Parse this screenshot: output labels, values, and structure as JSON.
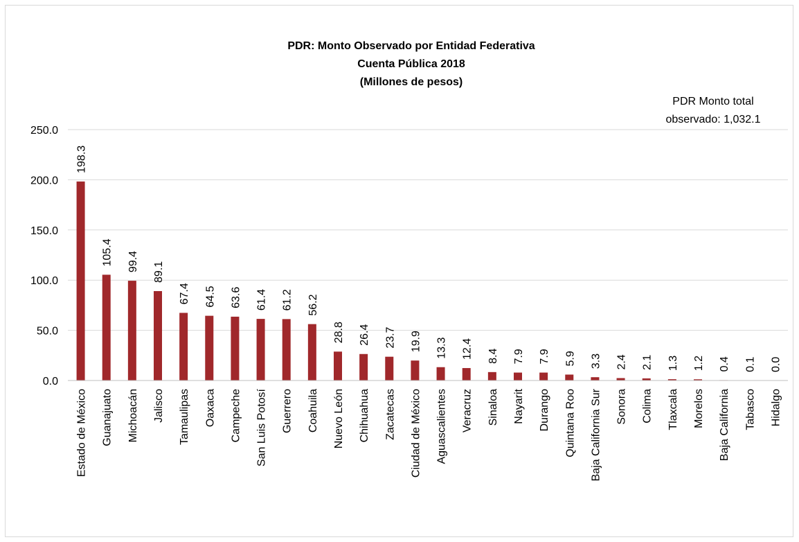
{
  "chart_data": {
    "type": "bar",
    "title": [
      "PDR: Monto Observado por Entidad Federativa",
      "Cuenta Pública 2018",
      "(Millones de pesos)"
    ],
    "annotation": [
      "PDR Monto total",
      "observado: 1,032.1"
    ],
    "xlabel": "",
    "ylabel": "",
    "ylim": [
      0,
      250
    ],
    "yticks": [
      "0.0",
      "50.0",
      "100.0",
      "150.0",
      "200.0",
      "250.0"
    ],
    "grid": true,
    "bar_color": "#a0282b",
    "categories": [
      "Estado de México",
      "Guanajuato",
      "Michoacán",
      "Jalisco",
      "Tamaulipas",
      "Oaxaca",
      "Campeche",
      "San Luis Potosí",
      "Guerrero",
      "Coahuila",
      "Nuevo León",
      "Chihuahua",
      "Zacatecas",
      "Ciudad de México",
      "Aguascalientes",
      "Veracruz",
      "Sinaloa",
      "Nayarit",
      "Durango",
      "Quintana Roo",
      "Baja California Sur",
      "Sonora",
      "Colima",
      "Tlaxcala",
      "Morelos",
      "Baja California",
      "Tabasco",
      "Hidalgo"
    ],
    "values": [
      198.3,
      105.4,
      99.4,
      89.1,
      67.4,
      64.5,
      63.6,
      61.4,
      61.2,
      56.2,
      28.8,
      26.4,
      23.7,
      19.9,
      13.3,
      12.4,
      8.4,
      7.9,
      7.9,
      5.9,
      3.3,
      2.4,
      2.1,
      1.3,
      1.2,
      0.4,
      0.1,
      0.0
    ],
    "value_labels": [
      "198.3",
      "105.4",
      "99.4",
      "89.1",
      "67.4",
      "64.5",
      "63.6",
      "61.4",
      "61.2",
      "56.2",
      "28.8",
      "26.4",
      "23.7",
      "19.9",
      "13.3",
      "12.4",
      "8.4",
      "7.9",
      "7.9",
      "5.9",
      "3.3",
      "2.4",
      "2.1",
      "1.3",
      "1.2",
      "0.4",
      "0.1",
      "0.0"
    ]
  }
}
